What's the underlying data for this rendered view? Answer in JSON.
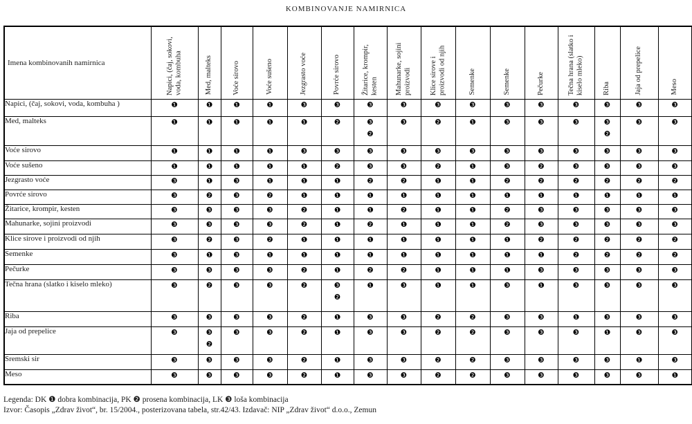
{
  "title": "KOMBINOVANJE NAMIRNICA",
  "table": {
    "corner_label": "Imena kombinovanih namirnica",
    "columns": [
      "Napici, (čaj, sokovi, voda, kombuha",
      "Med, malteks",
      "Voće sirovo",
      "Voće sušeno",
      "Jezgrasto voće",
      "Povrće sirovo",
      "Žitarice, krompir, kesten",
      "Mahunarke, sojini proizvodi",
      "Klice sirove i proizvodi od njih",
      "Semenke",
      "Semenke",
      "Pečurke",
      "Tečna hrana (slatko i kiselo mleko)",
      "Riba",
      "Jaja od prepelice",
      "Meso"
    ],
    "rows": [
      {
        "label": "Napici, (čaj, sokovi, voda, kombuha )",
        "cells": [
          "❶",
          "❶",
          "❶",
          "❶",
          "❸",
          "❸",
          "❸",
          "❸",
          "❸",
          "❸",
          "❸",
          "❸",
          "❸",
          "❸",
          "❸",
          "❸"
        ]
      },
      {
        "label": "Med, malteks",
        "cells": [
          "❶",
          "❶",
          "❶",
          "❶",
          "❶",
          "❷",
          "❸❷",
          "❸",
          "❷",
          "❶",
          "❸",
          "❸",
          "❸",
          "❸❷",
          "❸",
          "❸"
        ]
      },
      {
        "label": "Voće sirovo",
        "cells": [
          "❶",
          "❶",
          "❶",
          "❶",
          "❸",
          "❸",
          "❸",
          "❸",
          "❸",
          "❸",
          "❸",
          "❸",
          "❸",
          "❸",
          "❸",
          "❸"
        ]
      },
      {
        "label": "Voće sušeno",
        "cells": [
          "❶",
          "❶",
          "❶",
          "❶",
          "❶",
          "❷",
          "❸",
          "❸",
          "❷",
          "❶",
          "❸",
          "❷",
          "❸",
          "❸",
          "❸",
          "❸"
        ]
      },
      {
        "label": "Jezgrasto voće",
        "cells": [
          "❸",
          "❶",
          "❸",
          "❶",
          "❶",
          "❶",
          "❷",
          "❷",
          "❶",
          "❶",
          "❷",
          "❷",
          "❷",
          "❷",
          "❷",
          "❷"
        ]
      },
      {
        "label": "Povrće sirovo",
        "cells": [
          "❸",
          "❷",
          "❸",
          "❷",
          "❶",
          "❶",
          "❶",
          "❶",
          "❶",
          "❶",
          "❶",
          "❶",
          "❶",
          "❶",
          "❶",
          "❶"
        ]
      },
      {
        "label": "Žitarice, krompir, kesten",
        "cells": [
          "❸",
          "❸",
          "❸",
          "❸",
          "❷",
          "❶",
          "❶",
          "❷",
          "❶",
          "❶",
          "❷",
          "❸",
          "❸",
          "❸",
          "❸",
          "❸"
        ]
      },
      {
        "label": "Mahunarke, sojini proizvodi",
        "cells": [
          "❸",
          "❸",
          "❸",
          "❸",
          "❷",
          "❶",
          "❷",
          "❶",
          "❶",
          "❶",
          "❷",
          "❸",
          "❸",
          "❸",
          "❸",
          "❸"
        ]
      },
      {
        "label": "Klice sirove i proizvodi od njih",
        "cells": [
          "❸",
          "❷",
          "❸",
          "❷",
          "❶",
          "❶",
          "❶",
          "❶",
          "❶",
          "❶",
          "❶",
          "❷",
          "❷",
          "❷",
          "❷",
          "❷"
        ]
      },
      {
        "label": "Semenke",
        "cells": [
          "❸",
          "❶",
          "❸",
          "❶",
          "❶",
          "❶",
          "❶",
          "❶",
          "❶",
          "❶",
          "❶",
          "❶",
          "❷",
          "❷",
          "❷",
          "❷"
        ]
      },
      {
        "label": "Pečurke",
        "cells": [
          "❸",
          "❸",
          "❸",
          "❸",
          "❷",
          "❶",
          "❷",
          "❷",
          "❶",
          "❶",
          "❶",
          "❸",
          "❸",
          "❸",
          "❸",
          "❸"
        ]
      },
      {
        "label": "Tečna hrana (slatko i kiselo mleko)",
        "cells": [
          "❸",
          "❷",
          "❸",
          "❸",
          "❷",
          "❸❷",
          "❶",
          "❸",
          "❶",
          "❶",
          "❸",
          "❶",
          "❸",
          "❸",
          "❸",
          "❸"
        ]
      },
      {
        "label": "Riba",
        "cells": [
          "❸",
          "❸",
          "❸",
          "❸",
          "❷",
          "❶",
          "❸",
          "❸",
          "❷",
          "❷",
          "❸",
          "❸",
          "❶",
          "❸",
          "❸",
          "❸"
        ]
      },
      {
        "label": "Jaja od prepelice",
        "cells": [
          "❸",
          "❸❷",
          "❸",
          "❸",
          "❷",
          "❶",
          "❸",
          "❸",
          "❷",
          "❷",
          "❸",
          "❸",
          "❸",
          "❶",
          "❸",
          "❸"
        ]
      },
      {
        "label": "Sremski sir",
        "cells": [
          "❸",
          "❸",
          "❸",
          "❸",
          "❷",
          "❶",
          "❸",
          "❸",
          "❷",
          "❷",
          "❸",
          "❸",
          "❸",
          "❸",
          "❶",
          "❸"
        ]
      },
      {
        "label": "Meso",
        "cells": [
          "❸",
          "❸",
          "❸",
          "❸",
          "❷",
          "❶",
          "❸",
          "❸",
          "❷",
          "❷",
          "❸",
          "❸",
          "❸",
          "❸",
          "❸",
          "❶"
        ]
      }
    ]
  },
  "legend": {
    "text": "Legenda:  DK ❶ dobra kombinacija, PK ❷ prosena kombinacija, LK ❸ loša kombinacija"
  },
  "source": {
    "text": "Izvor: Časopis „Zdrav život“, br. 15/2004., posterizovana tabela, str.42/43. Izdavač: NIP „Zdrav život“ d.o.o., Zemun"
  },
  "symbols": {
    "dobra_kombinacija": "❶",
    "prosena_kombinacija": "❷",
    "losa_kombinacija": "❸"
  }
}
